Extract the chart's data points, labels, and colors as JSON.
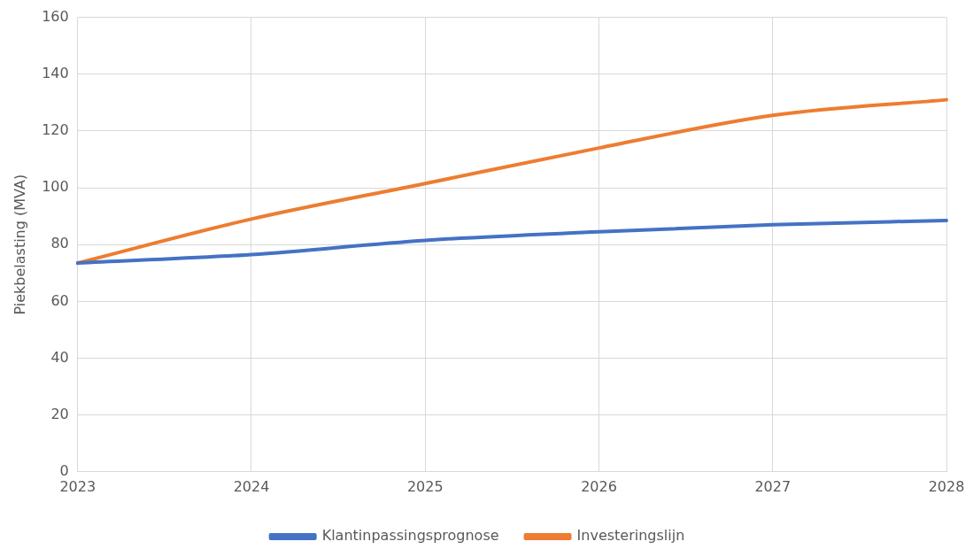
{
  "chart_data": {
    "type": "line",
    "ylabel": "Piekbelasting (MVA)",
    "categories": [
      "2023",
      "2024",
      "2025",
      "2026",
      "2027",
      "2028"
    ],
    "series": [
      {
        "name": "Klantinpassingsprognose",
        "color": "#4472c4",
        "values": [
          73.5,
          76.5,
          81.5,
          84.5,
          87,
          88.5
        ]
      },
      {
        "name": "Investeringslijn",
        "color": "#ed7d31",
        "values": [
          73.5,
          89,
          101.5,
          114,
          125.5,
          131
        ]
      }
    ],
    "ylim": [
      0,
      160
    ],
    "yticks": [
      0,
      20,
      40,
      60,
      80,
      100,
      120,
      140,
      160
    ],
    "grid": true,
    "legend": "bottom",
    "marker": "none",
    "line_style": "solid"
  }
}
